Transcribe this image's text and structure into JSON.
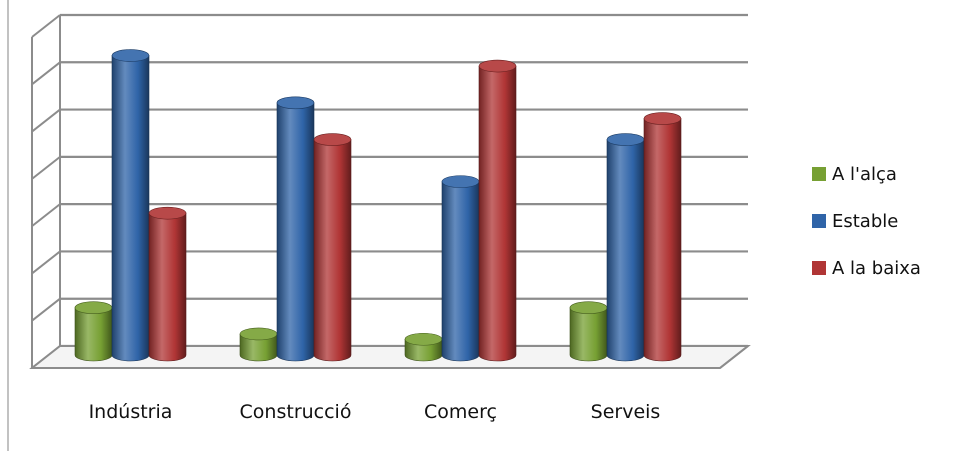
{
  "chart_data": {
    "type": "bar",
    "categories": [
      "Indústria",
      "Construcció",
      "Comerç",
      "Serveis"
    ],
    "series": [
      {
        "name": "A l'alça",
        "color": "#77a033",
        "values": [
          9,
          4,
          3,
          9
        ]
      },
      {
        "name": "Estable",
        "color": "#2f64a8",
        "values": [
          57,
          48,
          33,
          41
        ]
      },
      {
        "name": "A la baixa",
        "color": "#b03535",
        "values": [
          27,
          41,
          55,
          45
        ]
      }
    ],
    "ylim": [
      0,
      63
    ],
    "grid": true,
    "legend": "right"
  }
}
